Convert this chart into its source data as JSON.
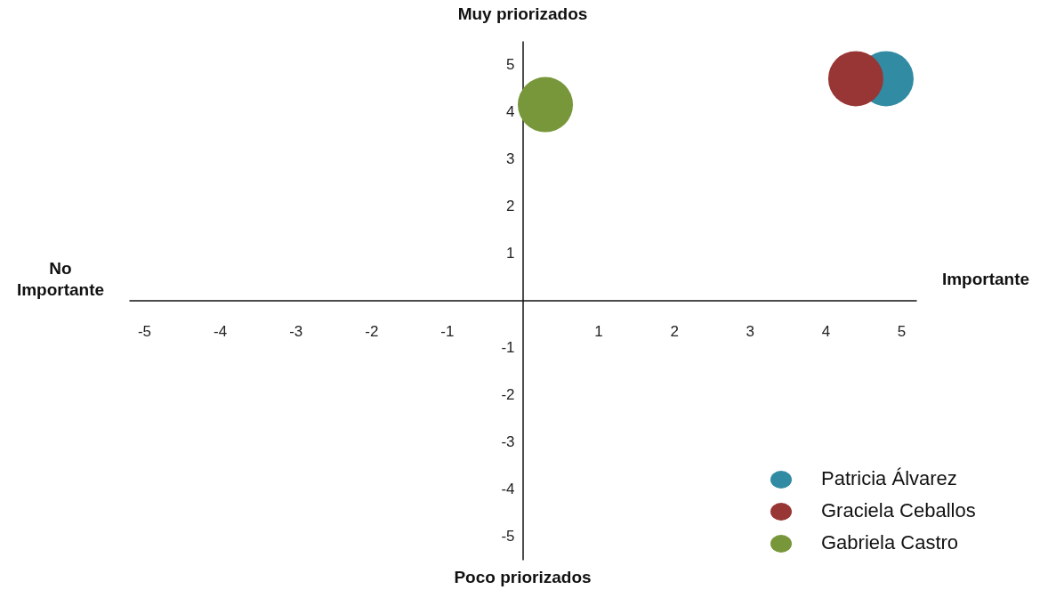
{
  "chart_data": {
    "type": "bubble",
    "xlim": [
      -5.2,
      5.2
    ],
    "ylim": [
      -5.5,
      5.5
    ],
    "xticks": [
      -5,
      -4,
      -3,
      -2,
      -1,
      1,
      2,
      3,
      4,
      5
    ],
    "yticks": [
      -5,
      -4,
      -3,
      -2,
      -1,
      1,
      2,
      3,
      4,
      5
    ],
    "series": [
      {
        "name": "Patricia Álvarez",
        "color": "#318ba3",
        "x": [
          4.8
        ],
        "values": [
          4.7
        ],
        "sizes": [
          1
        ]
      },
      {
        "name": "Graciela Ceballos",
        "color": "#973634",
        "x": [
          4.4
        ],
        "values": [
          4.7
        ],
        "sizes": [
          1
        ]
      },
      {
        "name": "Gabriela Castro",
        "color": "#77973a",
        "x": [
          0.3
        ],
        "values": [
          4.15
        ],
        "sizes": [
          1
        ]
      }
    ],
    "annotations": [
      "Muy priorizados",
      "Poco priorizados",
      "No Importante",
      "Importante"
    ],
    "legend": "bottom right",
    "grid": false
  }
}
